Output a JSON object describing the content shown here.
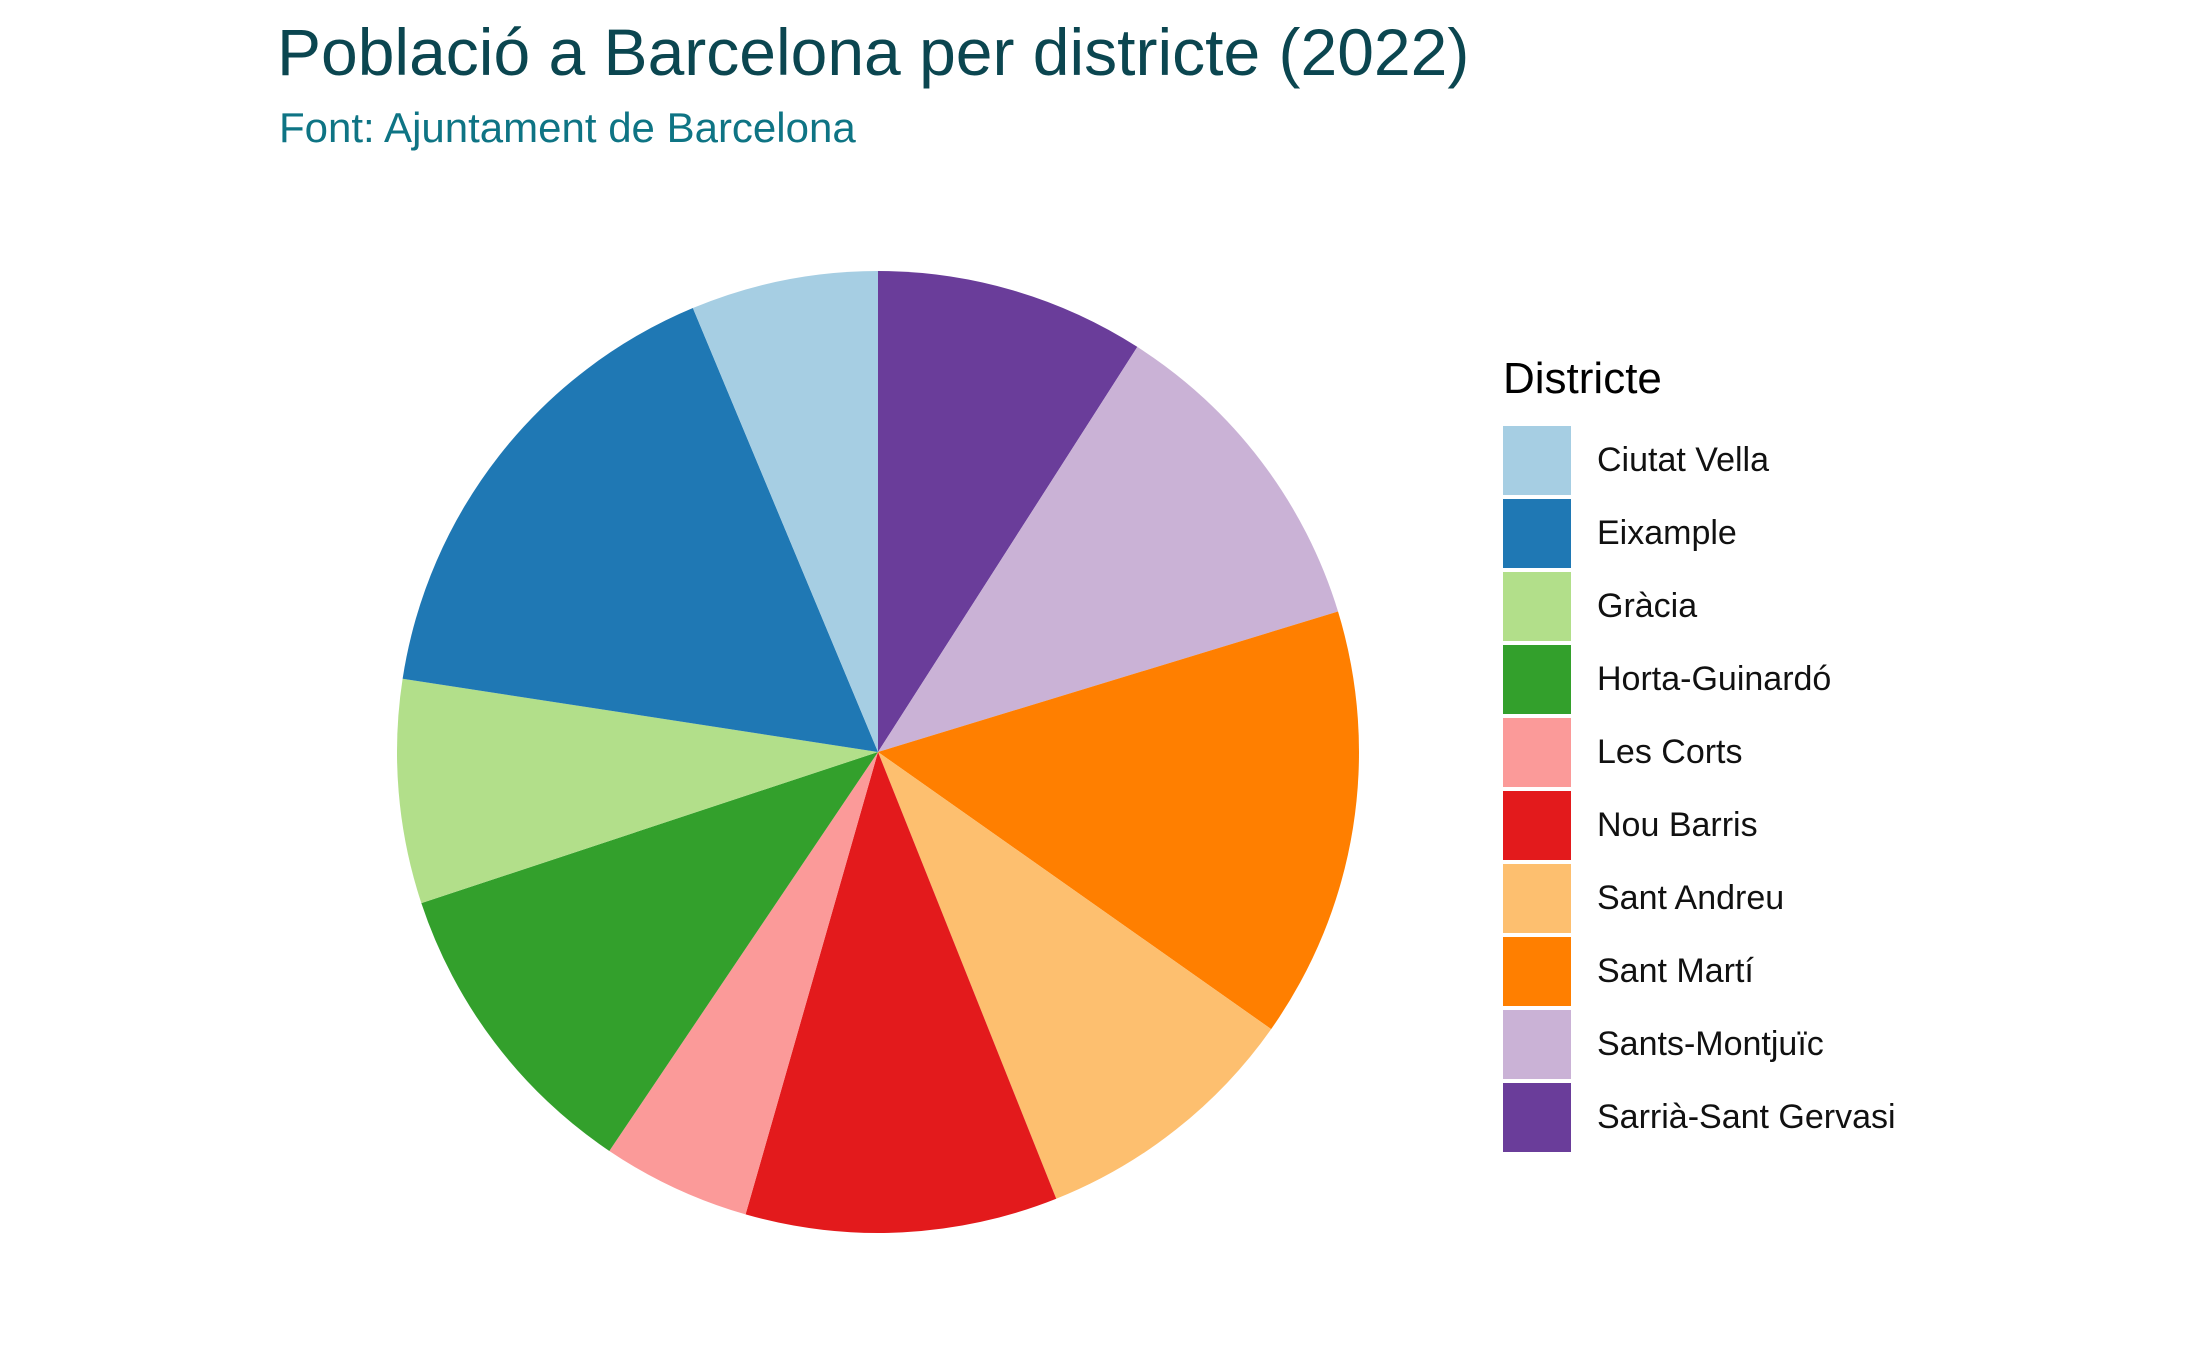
{
  "title": "Població a Barcelona per districte (2022)",
  "subtitle": "Font: Ajuntament de Barcelona",
  "chart_data": {
    "type": "pie",
    "legend_title": "Districte",
    "legend_position": "right",
    "start": "top, clockwise (last category first)",
    "slices": [
      {
        "name": "Ciutat Vella",
        "value": 102000,
        "color": "#A6CEE3"
      },
      {
        "name": "Eixample",
        "value": 264000,
        "color": "#1F78B4"
      },
      {
        "name": "Gràcia",
        "value": 122000,
        "color": "#B2DF8A"
      },
      {
        "name": "Horta-Guinardó",
        "value": 170000,
        "color": "#33A02C"
      },
      {
        "name": "Les Corts",
        "value": 81000,
        "color": "#FB9A99"
      },
      {
        "name": "Nou Barris",
        "value": 170000,
        "color": "#E31A1C"
      },
      {
        "name": "Sant Andreu",
        "value": 149000,
        "color": "#FDBF6F"
      },
      {
        "name": "Sant Martí",
        "value": 235000,
        "color": "#FF7F00"
      },
      {
        "name": "Sants-Montjuïc",
        "value": 182000,
        "color": "#CAB2D6"
      },
      {
        "name": "Sarrià-Sant Gervasi",
        "value": 147000,
        "color": "#6A3D9A"
      }
    ]
  }
}
